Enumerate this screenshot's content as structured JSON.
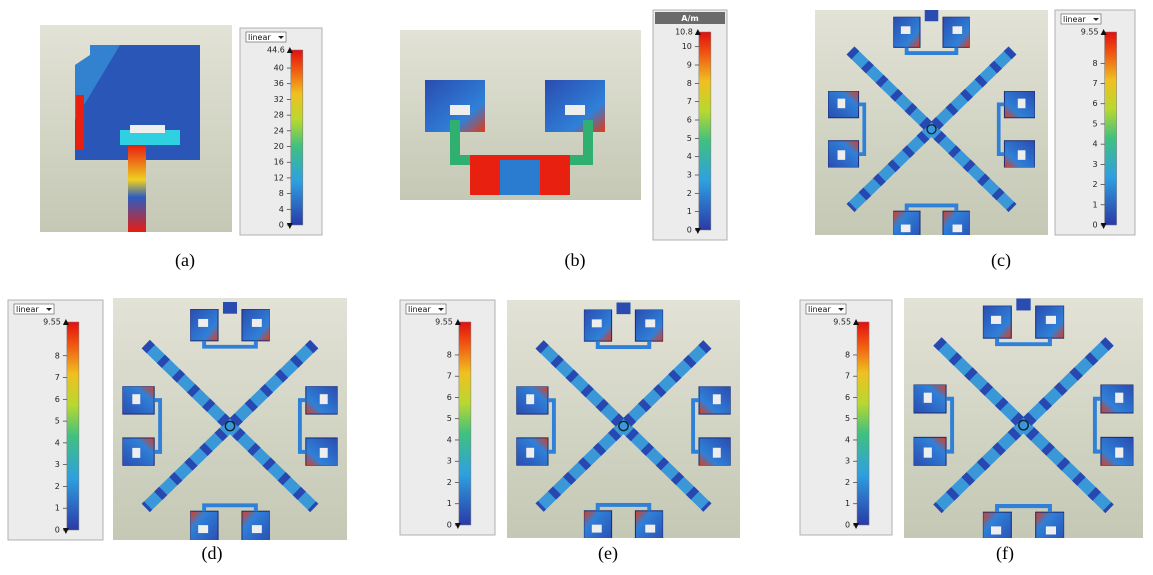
{
  "panels": [
    {
      "label": "(a)",
      "header": "linear",
      "max": 44.6,
      "ticks": [
        40,
        36,
        32,
        28,
        24,
        20,
        16,
        12,
        8,
        4,
        0
      ]
    },
    {
      "label": "(b)",
      "header": "A/m",
      "max": 10.8,
      "ticks": [
        10,
        9,
        8,
        7,
        6,
        5,
        4,
        3,
        2,
        1,
        0
      ]
    },
    {
      "label": "(c)",
      "header": "linear",
      "max": 9.55,
      "ticks": [
        8,
        7,
        6,
        5,
        4,
        3,
        2,
        1,
        0
      ]
    },
    {
      "label": "(d)",
      "header": "linear",
      "max": 9.55,
      "ticks": [
        8,
        7,
        6,
        5,
        4,
        3,
        2,
        1,
        0
      ]
    },
    {
      "label": "(e)",
      "header": "linear",
      "max": 9.55,
      "ticks": [
        8,
        7,
        6,
        5,
        4,
        3,
        2,
        1,
        0
      ]
    },
    {
      "label": "(f)",
      "header": "linear",
      "max": 9.55,
      "ticks": [
        8,
        7,
        6,
        5,
        4,
        3,
        2,
        1,
        0
      ]
    }
  ]
}
